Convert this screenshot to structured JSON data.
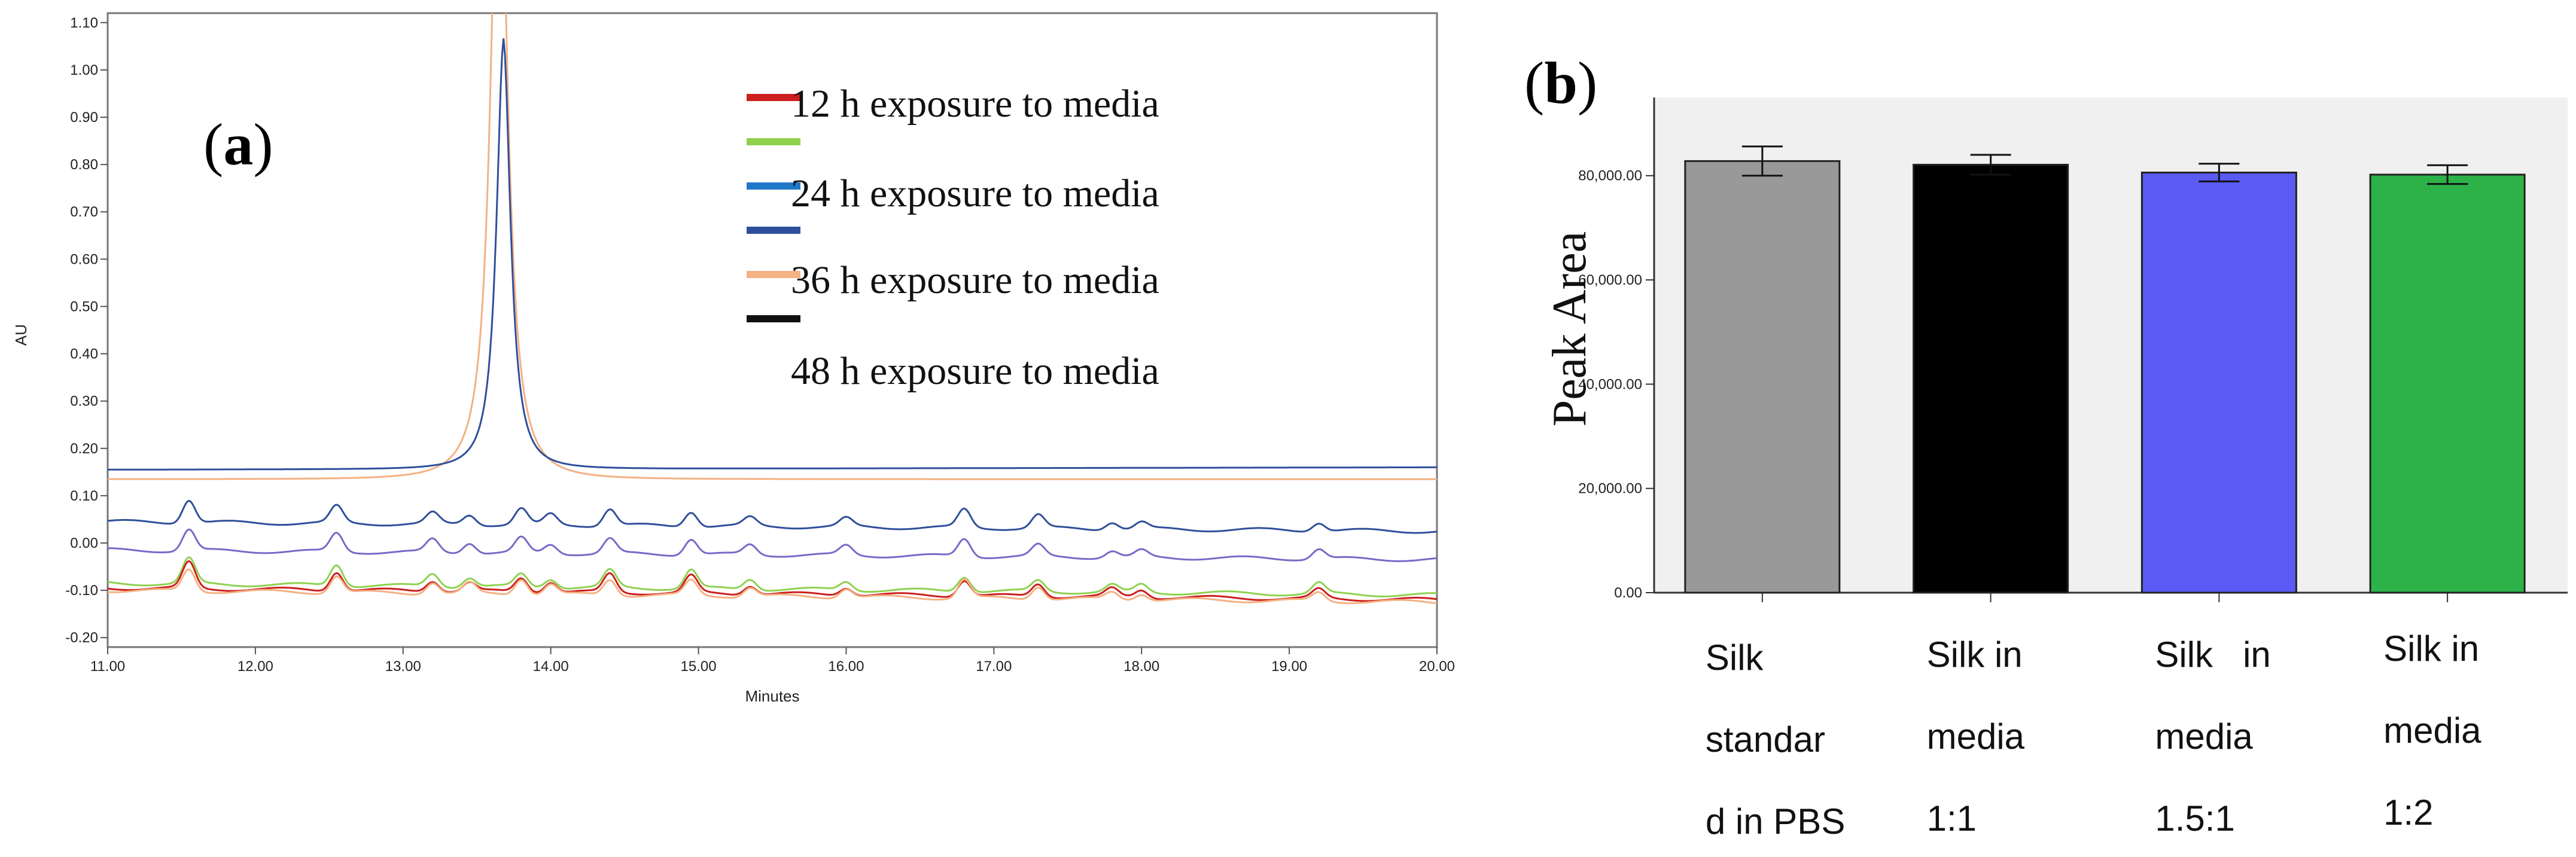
{
  "panels": {
    "a": {
      "label_open": "(",
      "label_letter": "a",
      "label_close": ")"
    },
    "b": {
      "label_open": "(",
      "label_letter": "b",
      "label_close": ")"
    }
  },
  "chart_data": [
    {
      "type": "line",
      "panel": "a",
      "title": "",
      "xlabel": "Minutes",
      "ylabel": "AU",
      "xlim": [
        11.0,
        20.0
      ],
      "ylim": [
        -0.22,
        1.12
      ],
      "xticks": [
        "11.00",
        "12.00",
        "13.00",
        "14.00",
        "15.00",
        "16.00",
        "17.00",
        "18.00",
        "19.00",
        "20.00"
      ],
      "yticks": [
        "-0.20",
        "-0.10",
        "0.00",
        "0.10",
        "0.20",
        "0.30",
        "0.40",
        "0.50",
        "0.60",
        "0.70",
        "0.80",
        "0.90",
        "1.00",
        "1.10"
      ],
      "legend_position": "top-right",
      "legend": [
        {
          "text": "12 h exposure to media",
          "color": "#cc1f1f"
        },
        {
          "text": "",
          "color": "#8fd14f"
        },
        {
          "text": "24 h exposure to media",
          "color": "#1f78c8"
        },
        {
          "text": "36 h exposure to media",
          "color": "#2f4f9a"
        },
        {
          "text": "",
          "color": "#f4b183"
        },
        {
          "text": "48 h exposure to media",
          "color": "#111111"
        }
      ],
      "peaks": [
        {
          "x": 11.55,
          "h": 0.05
        },
        {
          "x": 12.55,
          "h": 0.04
        },
        {
          "x": 13.2,
          "h": 0.025
        },
        {
          "x": 13.45,
          "h": 0.02
        },
        {
          "x": 13.8,
          "h": 0.03
        },
        {
          "x": 14.0,
          "h": 0.02
        },
        {
          "x": 14.4,
          "h": 0.035
        },
        {
          "x": 14.95,
          "h": 0.035
        },
        {
          "x": 15.35,
          "h": 0.02
        },
        {
          "x": 16.0,
          "h": 0.018
        },
        {
          "x": 16.8,
          "h": 0.035
        },
        {
          "x": 17.3,
          "h": 0.025
        },
        {
          "x": 17.8,
          "h": 0.015
        },
        {
          "x": 18.0,
          "h": 0.015
        },
        {
          "x": 19.2,
          "h": 0.02
        }
      ],
      "series": [
        {
          "color": "#f4b183",
          "kind": "main_peak",
          "baseline_start": 0.135,
          "baseline_end": 0.135,
          "peak_x": 13.65,
          "peak_height": 1.5,
          "peak_width": 0.14,
          "offset_y": 0.0
        },
        {
          "color": "#2f4f9a",
          "kind": "main_peak",
          "baseline_start": 0.155,
          "baseline_end": 0.16,
          "peak_x": 13.68,
          "peak_height": 0.91,
          "peak_width": 0.12,
          "offset_y": 0.0
        },
        {
          "color": "#2f4f9a",
          "kind": "minor",
          "baseline_start": 0.045,
          "baseline_end": 0.025,
          "offset_y": 0.0
        },
        {
          "color": "#7b68c8",
          "kind": "minor",
          "baseline_start": -0.015,
          "baseline_end": -0.035,
          "offset_y": 0.0
        },
        {
          "color": "#8fd14f",
          "kind": "minor",
          "baseline_start": -0.085,
          "baseline_end": -0.11,
          "offset_y": 0.0
        },
        {
          "color": "#cc1f1f",
          "kind": "minor",
          "baseline_start": -0.095,
          "baseline_end": -0.12,
          "offset_y": 0.0
        },
        {
          "color": "#f4b183",
          "kind": "minor",
          "baseline_start": -0.1,
          "baseline_end": -0.125,
          "offset_y": 0.0
        }
      ]
    },
    {
      "type": "bar",
      "panel": "b",
      "title": "",
      "xlabel": "",
      "ylabel": "Peak Area",
      "ylim": [
        0,
        95000
      ],
      "yticks": [
        "0.00",
        "20,000.00",
        "40,000.00",
        "60,000.00",
        "80,000.00"
      ],
      "categories": [
        [
          "Silk",
          "standar",
          "d in PBS"
        ],
        [
          "Silk in",
          "media",
          "1:1"
        ],
        [
          "Silk   in",
          "media",
          "1.5:1"
        ],
        [
          "Silk in",
          "media",
          "1:2"
        ]
      ],
      "values": [
        82800,
        82100,
        80600,
        80200
      ],
      "errors": [
        2800,
        1900,
        1700,
        1800
      ],
      "colors": [
        "#999999",
        "#000000",
        "#5a5af5",
        "#2db24a"
      ],
      "background": "#f0f0f0"
    }
  ]
}
